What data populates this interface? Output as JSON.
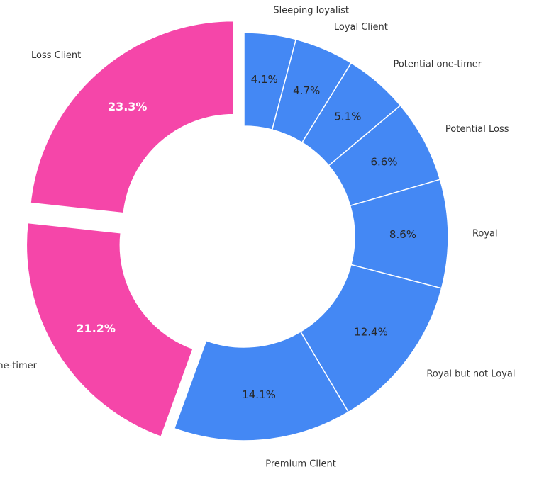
{
  "colors": {
    "highlight": "#F546A9",
    "base": "#4488F4",
    "edge": "#ffffff"
  },
  "chart_data": {
    "type": "pie",
    "style": "donut",
    "start_angle_deg": 90,
    "direction": "clockwise",
    "categories": [
      "Sleeping loyalist",
      "Loyal Client",
      "Potential one-timer",
      "Potential Loss",
      "Royal",
      "Royal but not Loyal",
      "Premium Client",
      "One-timer",
      "Loss Client"
    ],
    "values": [
      4.1,
      4.7,
      5.1,
      6.6,
      8.6,
      12.4,
      14.1,
      21.2,
      23.3
    ],
    "value_labels": [
      "4.1%",
      "4.7%",
      "5.1%",
      "6.6%",
      "8.6%",
      "12.4%",
      "14.1%",
      "21.2%",
      "23.3%"
    ],
    "highlighted": [
      "One-timer",
      "Loss Client"
    ]
  }
}
